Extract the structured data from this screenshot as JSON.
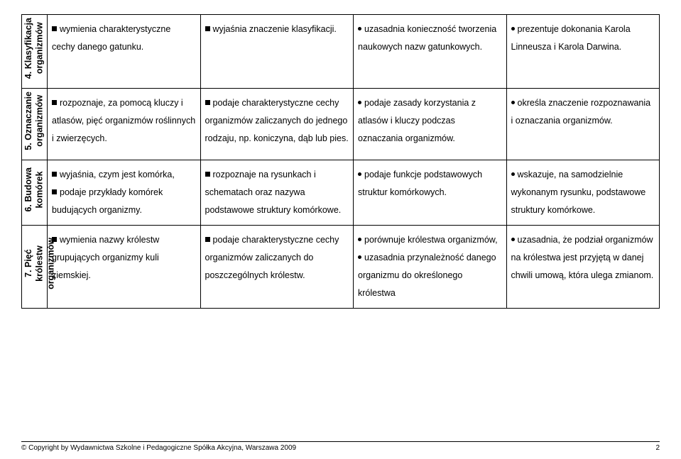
{
  "rows": [
    {
      "header": "4. Klasyfikacja\norganizmów",
      "cells": [
        [
          {
            "m": "sq",
            "t": "wymienia charakterystyczne cechy danego gatunku."
          }
        ],
        [
          {
            "m": "sq",
            "t": "wyjaśnia znaczenie klasyfikacji."
          }
        ],
        [
          {
            "m": "dot",
            "t": "uzasadnia konieczność tworzenia naukowych nazw gatunkowych."
          }
        ],
        [
          {
            "m": "dot",
            "t": "prezentuje dokonania Karola Linneusza i Karola Darwina."
          }
        ]
      ]
    },
    {
      "header": "5. Oznaczanie\norganizmów",
      "cells": [
        [
          {
            "m": "sq",
            "t": "rozpoznaje, za pomocą kluczy i atlasów, pięć organizmów roślinnych i zwierzęcych."
          }
        ],
        [
          {
            "m": "sq",
            "t": "podaje charakterystyczne cechy organizmów zaliczanych do jednego rodzaju, np. koniczyna, dąb lub pies."
          }
        ],
        [
          {
            "m": "dot",
            "t": "podaje zasady korzystania z atlasów i kluczy podczas oznaczania organizmów."
          }
        ],
        [
          {
            "m": "dot",
            "t": "określa znaczenie rozpoznawania i oznaczania organizmów."
          }
        ]
      ]
    },
    {
      "header": "6. Budowa\nkomórek",
      "cells": [
        [
          {
            "m": "sq",
            "t": "wyjaśnia, czym jest komórka,"
          },
          {
            "m": "sq",
            "t": "podaje przykłady komórek budujących organizmy."
          }
        ],
        [
          {
            "m": "sq",
            "t": "rozpoznaje na rysunkach i schematach oraz nazywa podstawowe struktury komórkowe."
          }
        ],
        [
          {
            "m": "dot",
            "t": "podaje funkcje podstawowych struktur komórkowych."
          }
        ],
        [
          {
            "m": "dot",
            "t": "wskazuje, na samodzielnie wykonanym rysunku, podstawowe struktury komórkowe."
          }
        ]
      ]
    },
    {
      "header": "7. Pięć\nkrólestw\norganizmów",
      "cells": [
        [
          {
            "m": "sq",
            "t": "wymienia nazwy królestw grupujących organizmy kuli ziemskiej."
          }
        ],
        [
          {
            "m": "sq",
            "t": "podaje charakterystyczne cechy organizmów zaliczanych do poszczególnych królestw."
          }
        ],
        [
          {
            "m": "dot",
            "t": "porównuje królestwa organizmów,"
          },
          {
            "m": "dot",
            "t": "uzasadnia przynależność danego organizmu do określonego królestwa"
          }
        ],
        [
          {
            "m": "dot",
            "t": "uzasadnia, że podział organizmów na królestwa jest przyjętą w danej chwili umową, która ulega zmianom."
          }
        ]
      ]
    }
  ],
  "footer": {
    "copyright": "© Copyright by Wydawnictwa Szkolne i Pedagogiczne Spółka Akcyjna, Warszawa 2009",
    "page": "2"
  }
}
